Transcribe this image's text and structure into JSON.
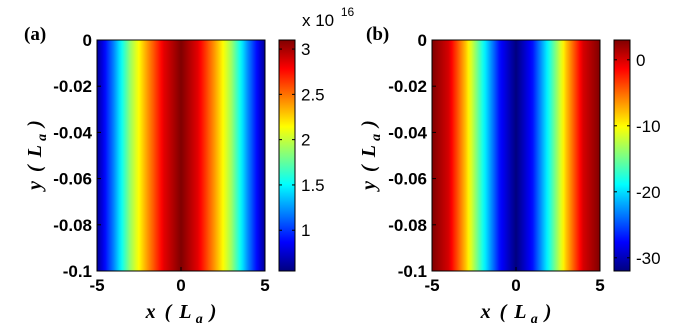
{
  "chart_data": [
    {
      "type": "heatmap",
      "panel_label": "(a)",
      "xlabel_main": "x",
      "xlabel_unit": "L",
      "xlabel_sub": "a",
      "ylabel_main": "y",
      "ylabel_unit": "L",
      "ylabel_sub": "a",
      "xlim": [
        -5,
        5
      ],
      "ylim": [
        -0.1,
        0
      ],
      "xticks": [
        "-5",
        "0",
        "5"
      ],
      "yticks": [
        "0",
        "-0.02",
        "-0.04",
        "-0.06",
        "-0.08",
        "-0.1"
      ],
      "colorbar": {
        "ticks": [
          "3",
          "2.5",
          "2",
          "1.5",
          "1"
        ],
        "tick_values": [
          3,
          2.5,
          2,
          1.5,
          1
        ],
        "range": [
          0.55,
          3.1
        ],
        "exponent_base": "x 10",
        "exponent_power": "16",
        "colormap": "jet"
      },
      "profile": {
        "description": "uniform in y, varies with x",
        "x": [
          -5,
          -4,
          -3,
          -2,
          -1,
          0,
          1,
          2,
          3,
          4,
          5
        ],
        "value": [
          0.6,
          1.2,
          1.9,
          2.4,
          2.85,
          3.1,
          2.85,
          2.4,
          1.9,
          1.2,
          0.6
        ]
      }
    },
    {
      "type": "heatmap",
      "panel_label": "(b)",
      "xlabel_main": "x",
      "xlabel_unit": "L",
      "xlabel_sub": "a",
      "ylabel_main": "y",
      "ylabel_unit": "L",
      "ylabel_sub": "a",
      "xlim": [
        -5,
        5
      ],
      "ylim": [
        -0.1,
        0
      ],
      "xticks": [
        "-5",
        "0",
        "5"
      ],
      "yticks": [
        "0",
        "-0.02",
        "-0.04",
        "-0.06",
        "-0.08",
        "-0.1"
      ],
      "colorbar": {
        "ticks": [
          "0",
          "-10",
          "-20",
          "-30"
        ],
        "tick_values": [
          0,
          -10,
          -20,
          -30
        ],
        "range": [
          -32,
          3
        ],
        "colormap": "jet"
      },
      "profile": {
        "description": "uniform in y, varies with x",
        "x": [
          -5,
          -4,
          -3,
          -2,
          -1,
          0,
          1,
          2,
          3,
          4,
          5
        ],
        "value": [
          3,
          0,
          -8,
          -18,
          -27,
          -32,
          -27,
          -18,
          -8,
          0,
          3
        ]
      }
    }
  ]
}
